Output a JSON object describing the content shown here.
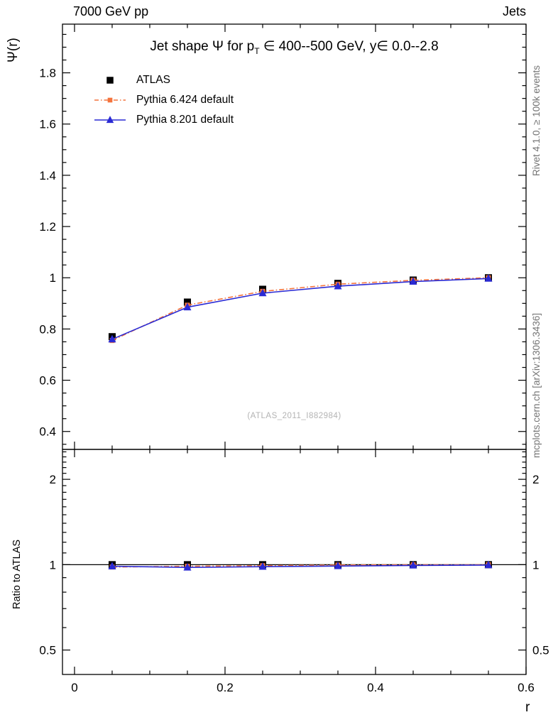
{
  "header": {
    "left": "7000 GeV pp",
    "right": "Jets"
  },
  "side_notes": {
    "rivet": "Rivet 4.1.0, ≥ 100k events",
    "mcplots": "mcplots.cern.ch [arXiv:1306.3436]"
  },
  "watermark": "(ATLAS_2011_I882984)",
  "chart_data": {
    "type": "line",
    "title": "Jet shape Ψ for p_T ∈ 400--500 GeV, y∈ 0.0--2.8",
    "title_parts": {
      "prefix": "Jet shape Ψ for p",
      "sub": "T",
      "suffix": " ∈ 400--500 GeV, y∈ 0.0--2.8"
    },
    "ylabel": "Ψ(r)",
    "xlabel": "r",
    "ratio_ylabel": "Ratio to ATLAS",
    "xlim": [
      -0.016,
      0.6
    ],
    "xticks": [
      0,
      0.2,
      0.4,
      0.6
    ],
    "xtick_labels": [
      "0",
      "0.2",
      "0.4",
      "0.6"
    ],
    "x_minor_step": 0.05,
    "main_panel": {
      "ylim": [
        0.33,
        1.99
      ],
      "yticks": [
        0.4,
        0.6,
        0.8,
        1.0,
        1.2,
        1.4,
        1.6,
        1.8
      ],
      "ytick_labels": [
        "0.4",
        "0.6",
        "0.8",
        "1",
        "1.2",
        "1.4",
        "1.6",
        "1.8"
      ],
      "y_minor_step": 0.05,
      "grid": false
    },
    "ratio_panel": {
      "scale": "log",
      "ylim": [
        0.41,
        2.55
      ],
      "yticks": [
        0.5,
        1,
        2
      ],
      "ytick_labels": [
        "0.5",
        "1",
        "2"
      ],
      "reference": 1
    },
    "x": [
      0.05,
      0.15,
      0.25,
      0.35,
      0.45,
      0.55
    ],
    "series": [
      {
        "name": "ATLAS",
        "color": "#000000",
        "marker": "square",
        "marker_size": 10,
        "line": "none",
        "values": [
          0.77,
          0.905,
          0.955,
          0.978,
          0.991,
          1.0
        ],
        "ratio": [
          1.0,
          1.0,
          1.0,
          1.0,
          1.0,
          1.0
        ]
      },
      {
        "name": "Pythia 6.424 default",
        "color": "#f4743e",
        "marker": "square",
        "marker_size": 7,
        "line": "dashdot",
        "values": [
          0.755,
          0.893,
          0.947,
          0.975,
          0.99,
          1.0
        ],
        "ratio": [
          0.981,
          0.987,
          0.992,
          0.997,
          0.999,
          1.0
        ]
      },
      {
        "name": "Pythia 8.201 default",
        "color": "#2a2ad4",
        "marker": "triangle",
        "marker_size": 10,
        "line": "solid",
        "values": [
          0.76,
          0.885,
          0.94,
          0.967,
          0.985,
          0.997
        ],
        "ratio": [
          0.987,
          0.978,
          0.984,
          0.989,
          0.994,
          0.997
        ]
      }
    ]
  }
}
